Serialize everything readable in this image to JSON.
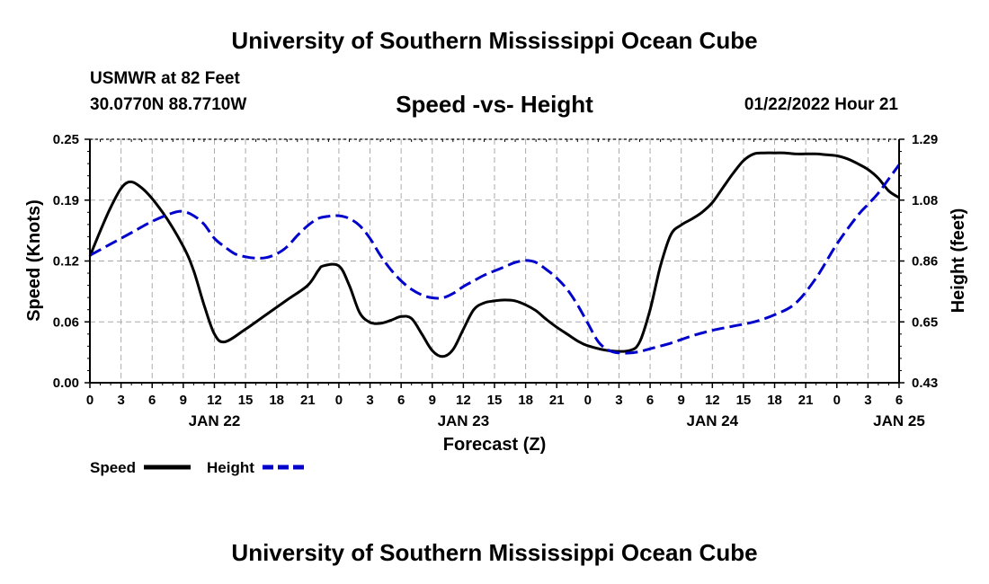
{
  "header": {
    "title": "University of Southern Mississippi Ocean Cube",
    "station": "USMWR at 82 Feet",
    "coords": "30.0770N  88.7710W",
    "subtitle": "Speed -vs- Height",
    "timestamp": "01/22/2022 Hour 21"
  },
  "footer": {
    "title": "University of Southern Mississippi Ocean Cube"
  },
  "colors": {
    "speed": "#000000",
    "height": "#0000cc",
    "grid": "#aaaaaa"
  },
  "chart_data": {
    "type": "line",
    "xlabel": "Forecast (Z)",
    "ylabel_left": "Speed (Knots)",
    "ylabel_right": "Height (feet)",
    "x_range": [
      0,
      78
    ],
    "x_tick_labels": [
      "0",
      "3",
      "6",
      "9",
      "12",
      "15",
      "18",
      "21",
      "0",
      "3",
      "6",
      "9",
      "12",
      "15",
      "18",
      "21",
      "0",
      "3",
      "6",
      "9",
      "12",
      "15",
      "18",
      "21",
      "0",
      "3",
      "6"
    ],
    "date_labels": [
      {
        "label": "JAN 22",
        "x": 12
      },
      {
        "label": "JAN 23",
        "x": 36
      },
      {
        "label": "JAN 24",
        "x": 60
      },
      {
        "label": "JAN 25",
        "x": 78
      }
    ],
    "y_left": {
      "range": [
        0,
        0.25
      ],
      "ticks": [
        "0.00",
        "0.06",
        "0.12",
        "0.19",
        "0.25"
      ]
    },
    "y_right": {
      "range": [
        0.43,
        1.29
      ],
      "ticks": [
        "0.43",
        "0.65",
        "0.86",
        "1.08",
        "1.29"
      ]
    },
    "legend": [
      {
        "name": "Speed",
        "style": "solid"
      },
      {
        "name": "Height",
        "style": "dashed"
      }
    ],
    "series": [
      {
        "name": "Speed",
        "axis": "left",
        "x": [
          0,
          2,
          3.5,
          5,
          7,
          9,
          10,
          11,
          12,
          13,
          15,
          17,
          19,
          21,
          22,
          22.5,
          24,
          25,
          26,
          27,
          28,
          29,
          30,
          31,
          32,
          33,
          34,
          35,
          36,
          37,
          38,
          39,
          40,
          41,
          42,
          43,
          44,
          45,
          46,
          47,
          48,
          50,
          52,
          53,
          54,
          55,
          56,
          57,
          58,
          59,
          60,
          61,
          62,
          63,
          64,
          65,
          66,
          67,
          68,
          69,
          70,
          71,
          72,
          73,
          74,
          75,
          76,
          77,
          78
        ],
        "values": [
          0.13,
          0.18,
          0.205,
          0.2,
          0.175,
          0.14,
          0.115,
          0.08,
          0.05,
          0.042,
          0.055,
          0.07,
          0.085,
          0.1,
          0.115,
          0.12,
          0.12,
          0.1,
          0.072,
          0.062,
          0.061,
          0.064,
          0.068,
          0.066,
          0.05,
          0.033,
          0.027,
          0.034,
          0.055,
          0.075,
          0.082,
          0.084,
          0.085,
          0.084,
          0.08,
          0.074,
          0.065,
          0.057,
          0.05,
          0.043,
          0.038,
          0.033,
          0.033,
          0.042,
          0.075,
          0.12,
          0.152,
          0.162,
          0.168,
          0.175,
          0.185,
          0.2,
          0.215,
          0.228,
          0.235,
          0.236,
          0.236,
          0.236,
          0.235,
          0.235,
          0.235,
          0.234,
          0.233,
          0.23,
          0.225,
          0.219,
          0.21,
          0.197,
          0.19
        ]
      },
      {
        "name": "Height",
        "axis": "right",
        "x": [
          0,
          2,
          4,
          6,
          8,
          9,
          10,
          11,
          12,
          13,
          14,
          15,
          16,
          17,
          18,
          19,
          20,
          21,
          22,
          23,
          24,
          25,
          26,
          27,
          28,
          29,
          30,
          31,
          32,
          33,
          34,
          35,
          36,
          37,
          38,
          39,
          40,
          41,
          42,
          43,
          44,
          45,
          46,
          47,
          48,
          49,
          50,
          51,
          52,
          53,
          54,
          56,
          58,
          60,
          62,
          64,
          66,
          68,
          70,
          72,
          74,
          75,
          76,
          77,
          78
        ],
        "values": [
          0.88,
          0.92,
          0.96,
          1.0,
          1.03,
          1.035,
          1.02,
          0.99,
          0.94,
          0.91,
          0.885,
          0.875,
          0.87,
          0.872,
          0.885,
          0.91,
          0.95,
          0.985,
          1.01,
          1.018,
          1.02,
          1.01,
          0.985,
          0.94,
          0.88,
          0.83,
          0.79,
          0.76,
          0.74,
          0.73,
          0.73,
          0.745,
          0.77,
          0.79,
          0.81,
          0.825,
          0.84,
          0.855,
          0.862,
          0.855,
          0.83,
          0.8,
          0.76,
          0.705,
          0.64,
          0.575,
          0.545,
          0.535,
          0.535,
          0.54,
          0.55,
          0.57,
          0.595,
          0.615,
          0.63,
          0.645,
          0.67,
          0.71,
          0.8,
          0.92,
          1.02,
          1.06,
          1.1,
          1.15,
          1.2
        ]
      }
    ]
  }
}
